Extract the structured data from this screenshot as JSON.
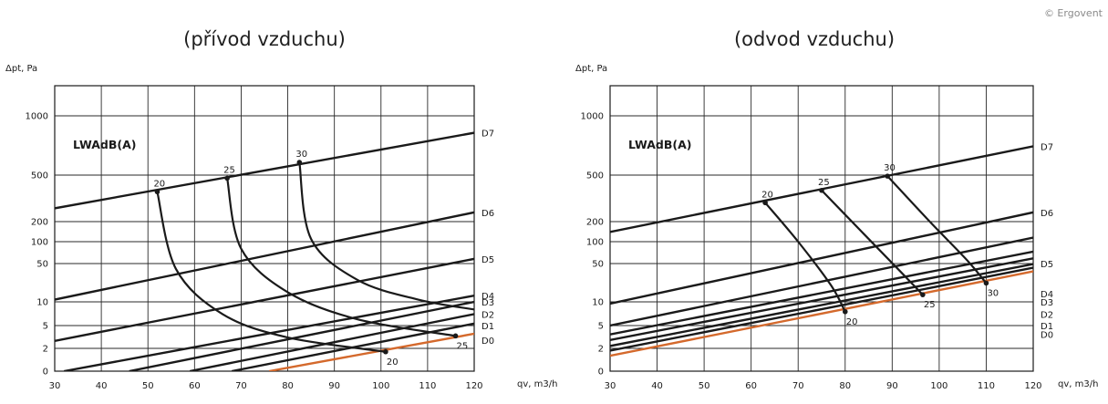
{
  "copyright": "© Ergovent",
  "colors": {
    "line": "#1a1a1a",
    "accent": "#d4692c",
    "grid": "#2a2a2a"
  },
  "chart_data": [
    {
      "type": "line",
      "title": "(přívod vzduchu)",
      "ylabel": "Δpt, Pa",
      "xlabel": "qv, m3/h",
      "xlim": [
        30,
        120
      ],
      "x_ticks": [
        30,
        40,
        50,
        60,
        70,
        80,
        90,
        100,
        110,
        120
      ],
      "y_ticks": [
        "0",
        "2",
        "5",
        "10",
        "50",
        "100",
        "200",
        "500",
        "1000"
      ],
      "y_tick_values": [
        0,
        2,
        5,
        10,
        50,
        100,
        200,
        500,
        1000
      ],
      "annotation": "LWAdB(A)",
      "series": [
        {
          "name": "D7",
          "x": [
            30,
            120
          ],
          "y": [
            260,
            820
          ]
        },
        {
          "name": "D6",
          "x": [
            30,
            120
          ],
          "y": [
            11,
            240
          ]
        },
        {
          "name": "D5",
          "x": [
            30,
            120
          ],
          "y": [
            2.7,
            58
          ]
        },
        {
          "name": "D4",
          "x": [
            32,
            120
          ],
          "y": [
            0,
            13
          ]
        },
        {
          "name": "D3",
          "x": [
            46,
            120
          ],
          "y": [
            0,
            10
          ]
        },
        {
          "name": "D2",
          "x": [
            59,
            120
          ],
          "y": [
            0,
            7
          ]
        },
        {
          "name": "D1",
          "x": [
            68,
            120
          ],
          "y": [
            0,
            5.3
          ],
          "label_y": 5
        },
        {
          "name": "D0",
          "x": [
            76,
            120
          ],
          "y": [
            0,
            3.6
          ],
          "highlight": true,
          "label_y": 2.8
        }
      ],
      "noise_curves": [
        {
          "label_top": "20",
          "label_bottom": "20",
          "points": [
            [
              52,
              360
            ],
            [
              56,
              40
            ],
            [
              66,
              7
            ],
            [
              80,
              3.1
            ],
            [
              101,
              1.7
            ]
          ]
        },
        {
          "label_top": "25",
          "points": [
            [
              67,
              470
            ],
            [
              70,
              80
            ],
            [
              80,
              15
            ],
            [
              95,
              6
            ],
            [
              116,
              3.3
            ]
          ],
          "label_bottom": "25"
        },
        {
          "label_top": "30",
          "points": [
            [
              82.5,
              580
            ],
            [
              85,
              110
            ],
            [
              95,
              25
            ],
            [
              108,
              11
            ],
            [
              120,
              8
            ]
          ]
        }
      ]
    },
    {
      "type": "line",
      "title": "(odvod vzduchu)",
      "ylabel": "Δpt, Pa",
      "xlabel": "qv, m3/h",
      "xlim": [
        30,
        120
      ],
      "x_ticks": [
        30,
        40,
        50,
        60,
        70,
        80,
        90,
        100,
        110,
        120
      ],
      "y_ticks": [
        "0",
        "2",
        "5",
        "10",
        "50",
        "100",
        "200",
        "500",
        "1000"
      ],
      "y_tick_values": [
        0,
        2,
        5,
        10,
        50,
        100,
        200,
        500,
        1000
      ],
      "annotation": "LWAdB(A)",
      "series": [
        {
          "name": "D7",
          "x": [
            30,
            120
          ],
          "y": [
            140,
            700
          ]
        },
        {
          "name": "D6",
          "x": [
            30,
            120
          ],
          "y": [
            9.5,
            240
          ]
        },
        {
          "name": "D5",
          "x": [
            30,
            120
          ],
          "y": [
            5,
            115
          ]
        },
        {
          "name": "D4",
          "x": [
            30,
            120
          ],
          "y": [
            3.5,
            73
          ],
          "label": false
        },
        {
          "name": "D3",
          "x": [
            30,
            120
          ],
          "y": [
            2.8,
            59
          ],
          "label": false
        },
        {
          "name": "D2",
          "x": [
            30,
            120
          ],
          "y": [
            2.2,
            49
          ],
          "label": false
        },
        {
          "name": "D1",
          "x": [
            30,
            120
          ],
          "y": [
            1.8,
            42
          ],
          "label": false
        },
        {
          "name": "D0",
          "x": [
            30,
            120
          ],
          "y": [
            1.35,
            36
          ],
          "highlight": true,
          "label": false
        }
      ],
      "side_labels": [
        {
          "name": "D5",
          "y": 50
        },
        {
          "name": "D4",
          "y": 14
        },
        {
          "name": "D3",
          "y": 10
        },
        {
          "name": "D2",
          "y": 7
        },
        {
          "name": "D1",
          "y": 5
        },
        {
          "name": "D0",
          "y": 3.5
        }
      ],
      "noise_curves": [
        {
          "label_top": "20",
          "label_bottom": "20",
          "points": [
            [
              63,
              290
            ],
            [
              70,
              100
            ],
            [
              77,
              20
            ],
            [
              80,
              7.5
            ]
          ]
        },
        {
          "label_top": "25",
          "label_bottom": "25",
          "points": [
            [
              75,
              370
            ],
            [
              84,
              130
            ],
            [
              92,
              34
            ],
            [
              96.5,
              13.5
            ]
          ]
        },
        {
          "label_top": "30",
          "label_bottom": "30",
          "points": [
            [
              89,
              490
            ],
            [
              98,
              200
            ],
            [
              106,
              55
            ],
            [
              110,
              22
            ]
          ]
        }
      ]
    }
  ]
}
